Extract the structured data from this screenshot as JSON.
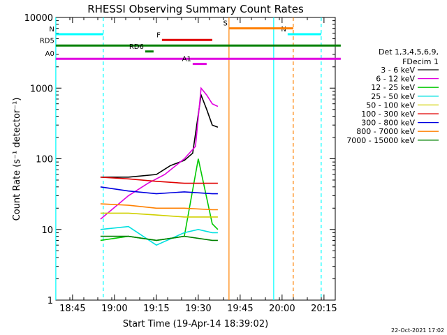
{
  "chart_data": {
    "type": "line",
    "title": "RHESSI Observing Summary Count Rates",
    "xlabel": "Start Time (19-Apr-14 18:39:02)",
    "ylabel": "Count Rate (s⁻¹ detector⁻¹)",
    "yscale": "log",
    "ylim": [
      1,
      10000
    ],
    "xlim_minutes_from_start": [
      0,
      100
    ],
    "x_ticks": [
      "18:45",
      "19:00",
      "19:15",
      "19:30",
      "19:45",
      "20:00",
      "20:15"
    ],
    "y_ticks": [
      "1",
      "10",
      "100",
      "1000",
      "10000"
    ],
    "date_stamp": "22-Oct-2021 17:02",
    "legend": {
      "header": [
        "Det 1,3,4,5,6,9,",
        "FDecim 1"
      ],
      "placement": "right"
    },
    "series": [
      {
        "name": "3 - 6 keV",
        "color": "#000000",
        "x_time": [
          "18:55",
          "19:05",
          "19:15",
          "19:20",
          "19:25",
          "19:28",
          "19:31",
          "19:33",
          "19:35",
          "19:37"
        ],
        "values": [
          55,
          55,
          60,
          80,
          95,
          120,
          800,
          500,
          300,
          280
        ]
      },
      {
        "name": "6 - 12 keV",
        "color": "#e000e0",
        "x_time": [
          "18:55",
          "19:05",
          "19:12",
          "19:18",
          "19:25",
          "19:29",
          "19:31",
          "19:33",
          "19:35",
          "19:37"
        ],
        "values": [
          14,
          30,
          45,
          60,
          100,
          150,
          1000,
          800,
          600,
          550
        ]
      },
      {
        "name": "12 - 25 keV",
        "color": "#00c800",
        "x_time": [
          "18:55",
          "19:05",
          "19:15",
          "19:25",
          "19:30",
          "19:35",
          "19:37"
        ],
        "values": [
          7,
          8,
          7,
          8,
          100,
          12,
          10
        ]
      },
      {
        "name": "25 - 50 keV",
        "color": "#00e0e0",
        "x_time": [
          "18:55",
          "19:05",
          "19:15",
          "19:25",
          "19:30",
          "19:35",
          "19:37"
        ],
        "values": [
          10,
          11,
          6,
          9,
          10,
          9,
          9
        ]
      },
      {
        "name": "50 - 100 keV",
        "color": "#d0d000",
        "x_time": [
          "18:55",
          "19:05",
          "19:15",
          "19:25",
          "19:35",
          "19:37"
        ],
        "values": [
          17,
          17,
          16,
          15,
          15,
          15
        ]
      },
      {
        "name": "100 - 300 keV",
        "color": "#e00000",
        "x_time": [
          "18:55",
          "19:05",
          "19:15",
          "19:25",
          "19:35",
          "19:37"
        ],
        "values": [
          55,
          52,
          48,
          45,
          45,
          45
        ]
      },
      {
        "name": "300 - 800 keV",
        "color": "#0000e0",
        "x_time": [
          "18:55",
          "19:05",
          "19:15",
          "19:25",
          "19:35",
          "19:37"
        ],
        "values": [
          40,
          35,
          32,
          34,
          32,
          32
        ]
      },
      {
        "name": "800 - 7000 keV",
        "color": "#ff8000",
        "x_time": [
          "18:55",
          "19:05",
          "19:15",
          "19:25",
          "19:35",
          "19:37"
        ],
        "values": [
          23,
          22,
          20,
          20,
          19,
          19
        ]
      },
      {
        "name": "7000 - 15000 keV",
        "color": "#008000",
        "x_time": [
          "18:55",
          "19:05",
          "19:15",
          "19:25",
          "19:35",
          "19:37"
        ],
        "values": [
          8,
          8,
          7,
          8,
          7,
          7
        ]
      }
    ],
    "flag_bars": [
      {
        "label": "N",
        "color": "#00ffff",
        "x_time": [
          "18:39",
          "18:56"
        ],
        "y": 5800
      },
      {
        "label": "N",
        "color": "#00ffff",
        "x_time": [
          "20:02",
          "20:14"
        ],
        "y": 5800
      },
      {
        "label": "F",
        "color": "#e00000",
        "x_time": [
          "19:17",
          "19:35"
        ],
        "y": 4800
      },
      {
        "label": "S",
        "color": "#ff8000",
        "x_time": [
          "19:41",
          "20:04"
        ],
        "y": 7000
      },
      {
        "label": "RD5",
        "color": "#008000",
        "x_time": [
          "18:39",
          "20:21"
        ],
        "y": 4000
      },
      {
        "label": "RD6",
        "color": "#008000",
        "x_time": [
          "19:11",
          "19:14"
        ],
        "y": 3300
      },
      {
        "label": "A0",
        "color": "#e000e0",
        "x_time": [
          "18:39",
          "20:21"
        ],
        "y": 2600
      },
      {
        "label": "A1",
        "color": "#e000e0",
        "x_time": [
          "19:28",
          "19:33"
        ],
        "y": 2200
      }
    ],
    "vertical_markers": [
      {
        "color": "#00ffff",
        "x_time": "18:39",
        "style": "solid"
      },
      {
        "color": "#00ffff",
        "x_time": "18:56",
        "style": "dashed"
      },
      {
        "color": "#ff8000",
        "x_time": "19:41",
        "style": "solid"
      },
      {
        "color": "#00ffff",
        "x_time": "19:57",
        "style": "solid"
      },
      {
        "color": "#ff8000",
        "x_time": "20:04",
        "style": "dashed"
      },
      {
        "color": "#00ffff",
        "x_time": "20:14",
        "style": "dashed"
      }
    ]
  }
}
